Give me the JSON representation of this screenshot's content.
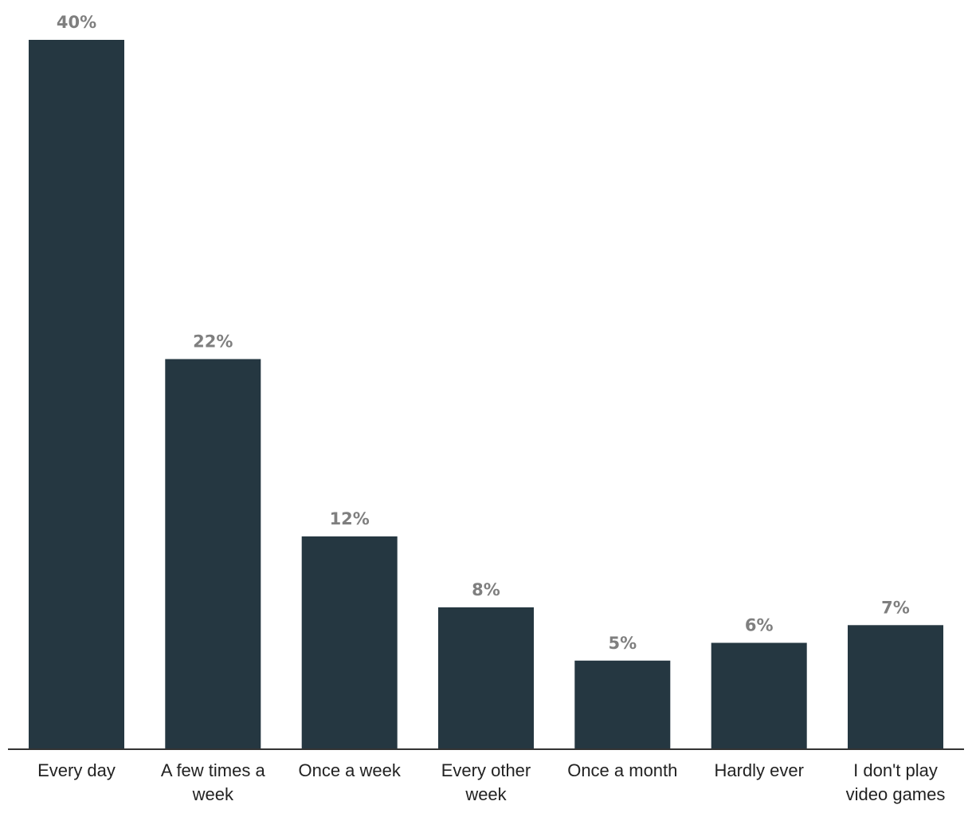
{
  "chart_data": {
    "type": "bar",
    "title": "",
    "xlabel": "",
    "ylabel": "",
    "ylim": [
      0,
      40
    ],
    "grid": false,
    "categories": [
      [
        "Every day"
      ],
      [
        "A few times a",
        "week"
      ],
      [
        "Once a week"
      ],
      [
        "Every other",
        "week"
      ],
      [
        "Once a month"
      ],
      [
        "Hardly ever"
      ],
      [
        "I don't play",
        "video games"
      ]
    ],
    "values": [
      40,
      22,
      12,
      8,
      5,
      6,
      7
    ],
    "value_labels": [
      "40%",
      "22%",
      "12%",
      "8%",
      "5%",
      "6%",
      "7%"
    ],
    "bar_color": "#253741",
    "axis_color": "#333333",
    "label_color": "#7f7f7f"
  }
}
